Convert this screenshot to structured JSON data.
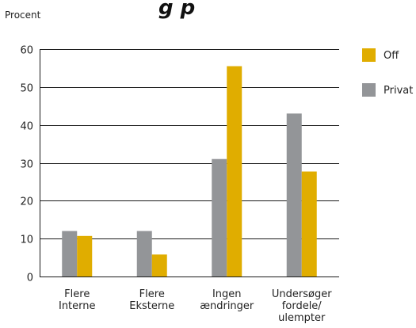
{
  "chart_data": {
    "type": "bar",
    "title": "g       p",
    "ylabel": "Procent",
    "xlabel": "",
    "categories": [
      [
        "Flere",
        "Interne"
      ],
      [
        "Flere",
        "Eksterne"
      ],
      [
        "Ingen",
        "ændringer"
      ],
      [
        "Undersøger",
        "fordele/",
        "ulempter"
      ]
    ],
    "series": [
      {
        "name": "Privat",
        "color": "#939598",
        "values": [
          12,
          12,
          31,
          43
        ]
      },
      {
        "name": "Off",
        "color": "#e0ad00",
        "values": [
          10.7,
          5.8,
          55.5,
          27.7
        ]
      }
    ],
    "legend_order": [
      "Off",
      "Privat"
    ],
    "legend_position": "right",
    "ylim": [
      0,
      60
    ],
    "yticks": [
      0,
      10,
      20,
      30,
      40,
      50,
      60
    ],
    "grid": true
  }
}
